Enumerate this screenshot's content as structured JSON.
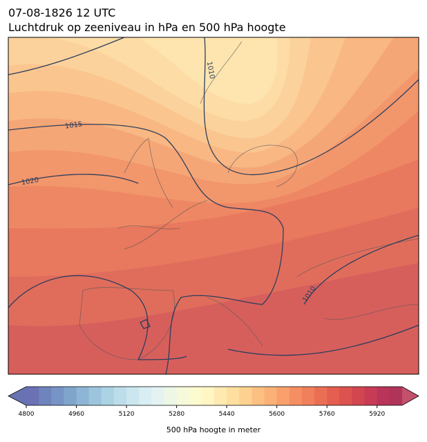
{
  "header": {
    "title_line1": "07-08-1826 12 UTC",
    "title_line2": "Luchtdruk op zeeniveau in hPa en 500 hPa hoogte"
  },
  "map": {
    "isobar_labels": [
      "1010",
      "1015",
      "1020",
      "1010"
    ]
  },
  "colorbar": {
    "lim": [
      4800,
      6000
    ],
    "ticks": [
      4800,
      4960,
      5120,
      5280,
      5440,
      5600,
      5760,
      5920
    ],
    "colors": [
      "#6a72b5",
      "#6f83bd",
      "#7694c5",
      "#80a5cd",
      "#8db5d5",
      "#9cc5dd",
      "#acd3e4",
      "#bcdeea",
      "#cbe6ef",
      "#d9eef3",
      "#e4f3f2",
      "#eef7e6",
      "#f6fadb",
      "#fcfbcf",
      "#fff6c4",
      "#feeab0",
      "#fedfa0",
      "#fdd18f",
      "#fcc182",
      "#fbb176",
      "#f9a06c",
      "#f58f63",
      "#f07f5b",
      "#ea6e54",
      "#e45f4f",
      "#dc524f",
      "#d24650",
      "#c63c55",
      "#b83559",
      "#b0345a"
    ],
    "under_color": "#6873b4",
    "over_color": "#c4506b",
    "label": "500 hPa hoogte in meter"
  }
}
